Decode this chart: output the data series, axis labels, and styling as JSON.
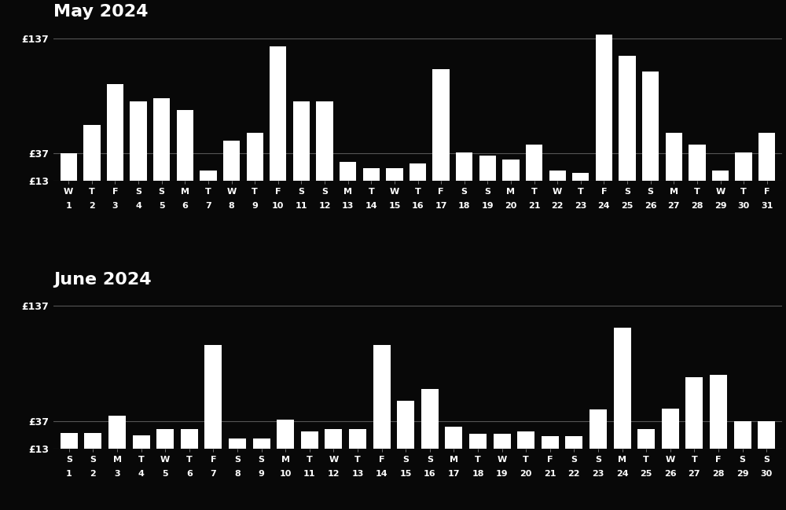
{
  "may_title": "May 2024",
  "june_title": "June 2024",
  "may_days": [
    1,
    2,
    3,
    4,
    5,
    6,
    7,
    8,
    9,
    10,
    11,
    12,
    13,
    14,
    15,
    16,
    17,
    18,
    19,
    20,
    21,
    22,
    23,
    24,
    25,
    26,
    27,
    28,
    29,
    30,
    31
  ],
  "may_dow": [
    "W",
    "T",
    "F",
    "S",
    "S",
    "M",
    "T",
    "W",
    "T",
    "F",
    "S",
    "S",
    "M",
    "T",
    "W",
    "T",
    "F",
    "S",
    "S",
    "M",
    "T",
    "W",
    "T",
    "F",
    "S",
    "S",
    "M",
    "T",
    "W",
    "T",
    "F"
  ],
  "may_values": [
    37,
    62,
    97,
    82,
    85,
    75,
    22,
    48,
    55,
    130,
    82,
    82,
    30,
    24,
    24,
    28,
    110,
    38,
    35,
    32,
    45,
    22,
    20,
    140,
    122,
    108,
    55,
    45,
    22,
    38,
    55
  ],
  "june_days": [
    1,
    2,
    3,
    4,
    5,
    6,
    7,
    8,
    9,
    10,
    11,
    12,
    13,
    14,
    15,
    16,
    17,
    18,
    19,
    20,
    21,
    22,
    23,
    24,
    25,
    26,
    27,
    28,
    29,
    30
  ],
  "june_dow": [
    "S",
    "S",
    "M",
    "T",
    "W",
    "T",
    "F",
    "S",
    "S",
    "M",
    "T",
    "W",
    "T",
    "F",
    "S",
    "S",
    "M",
    "T",
    "W",
    "T",
    "F",
    "S",
    "S",
    "M",
    "T",
    "W",
    "T",
    "F",
    "S",
    "S"
  ],
  "june_values": [
    27,
    27,
    42,
    25,
    30,
    30,
    103,
    22,
    22,
    38,
    28,
    30,
    30,
    103,
    55,
    65,
    32,
    26,
    26,
    28,
    24,
    24,
    47,
    118,
    30,
    48,
    75,
    77,
    37,
    37
  ],
  "ylim_min": 13,
  "ylim_max": 148,
  "yticks": [
    13,
    37,
    137
  ],
  "bar_color": "#ffffff",
  "bg_color": "#080808",
  "text_color": "#ffffff",
  "title_fontsize": 16,
  "ytick_fontsize": 9,
  "xtick_fontsize": 8,
  "grid_color": "#555555",
  "bar_width": 0.72,
  "tick_color": "#888888"
}
